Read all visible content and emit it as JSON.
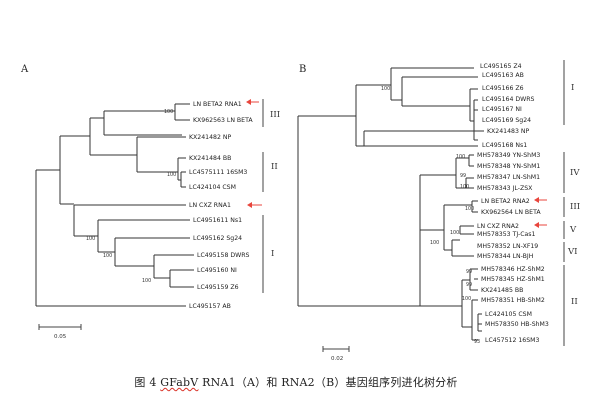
{
  "panels": {
    "a": {
      "letter": "A",
      "leaves": [
        "LN BETA2 RNA1",
        "KX962563 LN BETA",
        "KX241482 NP",
        "KX241484 BB",
        "LC4575111 16SM3",
        "LC424104 CSM",
        "LN CXZ RNA1",
        "LC4951611 Ns1",
        "LC495162 Sg24",
        "LC495158 DWRS",
        "LC495160 NI",
        "LC495159 Z6",
        "LC495157 AB"
      ],
      "bootstraps": [
        "100",
        "100",
        "100",
        "100",
        "100"
      ],
      "clades": [
        "III",
        "II",
        "I"
      ],
      "scale_label": "0.05"
    },
    "b": {
      "letter": "B",
      "leaves": [
        "LC495165 Z4",
        "LC495163 AB",
        "LC495166 Z6",
        "LC495164 DWRS",
        "LC495167 NI",
        "LC495169 Sg24",
        "KX241483 NP",
        "LC495168 Ns1",
        "MH578349 YN-ShM3",
        "MH578348 YN-ShM1",
        "MH578347 LN-ShM1",
        "MH578343 JL-ZSX",
        "LN BETA2 RNA2",
        "KX962564 LN BETA",
        "LN CXZ RNA2",
        "MH578353 TJ-Cas1",
        "MH578352 LN-XF19",
        "MH578344 LN-BJH",
        "MH578346 HZ-ShM2",
        "MH578345 HZ-ShM1",
        "KX241485 BB",
        "MH578351 HB-ShM2",
        "LC424105 CSM",
        "MH578350 HB-ShM3",
        "LC457512 16SM3"
      ],
      "bootstraps": [
        "100",
        "100",
        "99",
        "100",
        "100",
        "100",
        "100",
        "99",
        "99",
        "100",
        "93"
      ],
      "clades": [
        "I",
        "IV",
        "III",
        "V",
        "VI",
        "II"
      ],
      "scale_label": "0.02"
    }
  },
  "caption": {
    "prefix": "图 4 ",
    "gfabv": "GFabV",
    "rest": " RNA1（A）和 RNA2（B）基因组序列进化树分析"
  },
  "colors": {
    "arrow": "#e8453c",
    "branch": "#333333"
  },
  "icons": [
    "left-arrow-icon"
  ]
}
